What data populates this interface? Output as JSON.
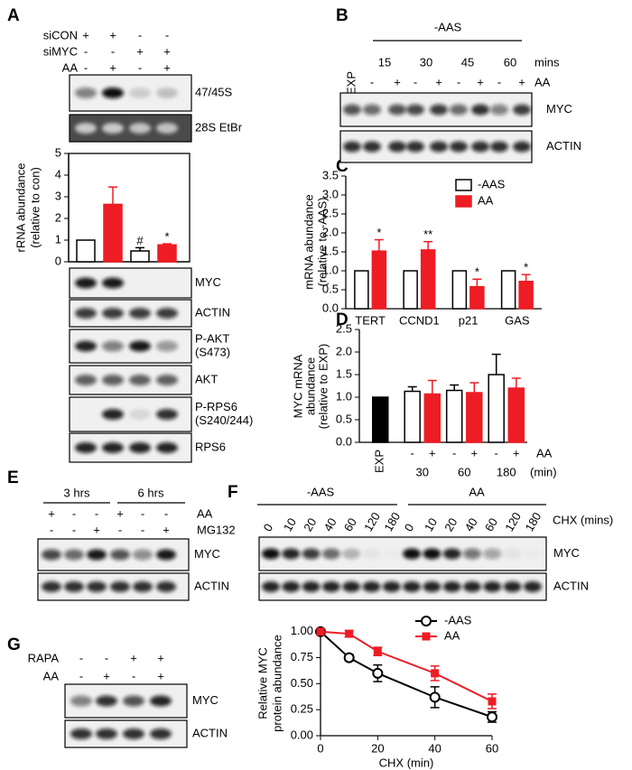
{
  "panel_labels": [
    "A",
    "B",
    "C",
    "D",
    "E",
    "F",
    "G"
  ],
  "panel_a": {
    "conditions": [
      {
        "label": "siCON",
        "signs": [
          "+",
          "+",
          "-",
          "-"
        ]
      },
      {
        "label": "siMYC",
        "signs": [
          "-",
          "-",
          "+",
          "+"
        ]
      },
      {
        "label": "AA",
        "signs": [
          "-",
          "+",
          "-",
          "+"
        ]
      }
    ],
    "blots_top": [
      [
        "47/45S"
      ],
      [
        "28S EtBr"
      ]
    ],
    "blots_bottom": [
      [
        "MYC"
      ],
      [
        "ACTIN"
      ],
      [
        "P-AKT",
        "(S473)"
      ],
      [
        "AKT"
      ],
      [
        "P-RPS6",
        "(S240/244)"
      ],
      [
        "RPS6"
      ]
    ]
  },
  "panel_b": {
    "group": "-AAS",
    "control": "EXP",
    "times": [
      "15",
      "30",
      "45",
      "60"
    ],
    "time_unit": "mins",
    "treatment": "AA",
    "signs": [
      "-",
      "+",
      "-",
      "+",
      "-",
      "+",
      "-",
      "+"
    ],
    "blots": [
      [
        "MYC"
      ],
      [
        "ACTIN"
      ]
    ]
  },
  "panel_e": {
    "groups": [
      "3 hrs",
      "6 hrs"
    ],
    "conditions": [
      {
        "label": "AA",
        "signs": [
          "+",
          "-",
          "-",
          "+",
          "-",
          "-"
        ]
      },
      {
        "label": "MG132",
        "signs": [
          "-",
          "-",
          "+",
          "-",
          "-",
          "+"
        ]
      }
    ],
    "blots": [
      [
        "MYC"
      ],
      [
        "ACTIN"
      ]
    ]
  },
  "panel_f": {
    "groups": [
      "-AAS",
      "AA"
    ],
    "times": [
      "0",
      "10",
      "20",
      "40",
      "60",
      "120",
      "180",
      "0",
      "10",
      "20",
      "40",
      "60",
      "120",
      "180"
    ],
    "time_unit": "CHX (mins)",
    "blots": [
      [
        "MYC"
      ],
      [
        "ACTIN"
      ]
    ]
  },
  "panel_g": {
    "conditions": [
      {
        "label": "RAPA",
        "signs": [
          "-",
          "-",
          "+",
          "+"
        ]
      },
      {
        "label": "AA",
        "signs": [
          "-",
          "+",
          "-",
          "+"
        ]
      }
    ],
    "blots": [
      [
        "MYC"
      ],
      [
        "ACTIN"
      ]
    ]
  },
  "chart_data": [
    {
      "type": "bar",
      "y_label": [
        "rRNA abundance",
        "(relative to con)"
      ],
      "categories": [
        null,
        null,
        null,
        null
      ],
      "values": [
        1,
        2.65,
        0.5,
        0.78
      ],
      "errors": [
        null,
        0.8,
        0.15,
        0.05
      ],
      "colors": [
        "#ffffff",
        "#ee1c24",
        "#ffffff",
        "#ee1c24"
      ],
      "annotations": [
        null,
        null,
        "#",
        "*"
      ],
      "ylim": [
        0,
        5
      ],
      "yticks": [
        0,
        1,
        2,
        3,
        4,
        5
      ]
    },
    {
      "type": "grouped_bar",
      "y_label": [
        "mRNA abundance",
        "(relative to -AAS)"
      ],
      "categories": [
        "TERT",
        "CCND1",
        "p21",
        "GAS"
      ],
      "series": [
        {
          "name": "-AAS",
          "color": "#ffffff",
          "values": [
            1,
            1,
            1,
            1
          ],
          "errors": [
            null,
            null,
            null,
            null
          ]
        },
        {
          "name": "AA",
          "color": "#ee1c24",
          "values": [
            1.52,
            1.55,
            0.58,
            0.72
          ],
          "errors": [
            0.3,
            0.22,
            0.2,
            0.18
          ],
          "annotations": [
            "*",
            "**",
            "*",
            "*"
          ]
        }
      ],
      "ylim": [
        0,
        3.5
      ],
      "yticks": [
        {
          "value": 0,
          "label": "0.0"
        },
        0.5,
        {
          "value": 1,
          "label": "1.0"
        },
        1.5,
        {
          "value": 2,
          "label": "2.0"
        },
        2.5,
        {
          "value": 3,
          "label": "3.0"
        },
        3.5
      ],
      "legend": "upper right"
    },
    {
      "type": "grouped_bar",
      "y_label": [
        "MYC mRNA",
        "abundance",
        "(relative to EXP)"
      ],
      "categories": [
        "EXP",
        "30",
        "60",
        "180"
      ],
      "x_unit": "(min)",
      "sign_label": "AA",
      "signs": [
        null,
        [
          "-",
          "+"
        ],
        [
          "-",
          "+"
        ],
        [
          "-",
          "+"
        ]
      ],
      "series": [
        {
          "color": "#000000",
          "values": [
            1,
            null,
            null,
            null
          ],
          "errors": [
            null,
            null,
            null,
            null
          ]
        },
        {
          "color": "#ffffff",
          "values": [
            null,
            1.13,
            1.15,
            1.5
          ],
          "errors": [
            null,
            0.1,
            0.12,
            0.45
          ]
        },
        {
          "color": "#ee1c24",
          "values": [
            null,
            1.07,
            1.1,
            1.2
          ],
          "errors": [
            null,
            0.3,
            0.22,
            0.22
          ]
        }
      ],
      "ylim": [
        0,
        2.5
      ],
      "yticks": [
        {
          "value": 0,
          "label": "0.0"
        },
        0.5,
        {
          "value": 1,
          "label": "1.0"
        },
        1.5,
        {
          "value": 2,
          "label": "2.0"
        },
        2.5
      ]
    },
    {
      "type": "line",
      "x_label": "CHX (min)",
      "y_label": [
        "Relative MYC",
        "protein abundance"
      ],
      "x": [
        0,
        10,
        20,
        40,
        60
      ],
      "series": [
        {
          "name": "-AAS",
          "color": "#000000",
          "marker": "circle",
          "values": [
            1,
            0.75,
            0.6,
            0.37,
            0.18
          ],
          "errors": [
            null,
            0.03,
            0.08,
            0.1,
            0.05
          ]
        },
        {
          "name": "AA",
          "color": "#ee1c24",
          "marker": "square",
          "values": [
            1,
            0.98,
            0.81,
            0.6,
            0.33
          ],
          "errors": [
            null,
            0.03,
            0.04,
            0.07,
            0.07
          ]
        }
      ],
      "xlim": [
        0,
        60
      ],
      "xticks": [
        0,
        20,
        40,
        60
      ],
      "ylim": [
        0,
        1.05
      ],
      "yticks": [
        {
          "value": 0,
          "label": "0.00"
        },
        0.25,
        {
          "value": 0.5,
          "label": "0.50"
        },
        0.75,
        {
          "value": 1,
          "label": "1.00"
        }
      ],
      "legend": "upper right"
    }
  ]
}
